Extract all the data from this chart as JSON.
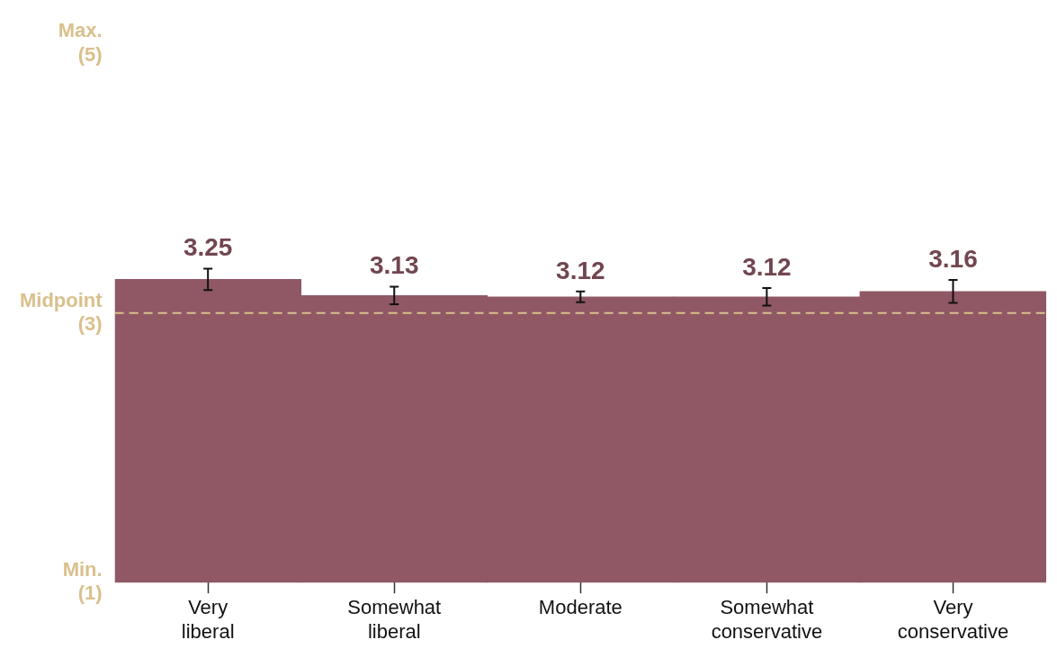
{
  "chart_data": {
    "type": "bar",
    "categories": [
      "Very liberal",
      "Somewhat liberal",
      "Moderate",
      "Somewhat conservative",
      "Very conservative"
    ],
    "values": [
      3.25,
      3.13,
      3.12,
      3.12,
      3.16
    ],
    "errors": [
      0.08,
      0.065,
      0.04,
      0.065,
      0.085
    ],
    "color": "#8f5864",
    "data_labels": true,
    "ylim": [
      1,
      5
    ],
    "yticks": [
      {
        "value": 1,
        "label": "Min.\n(1)"
      },
      {
        "value": 3,
        "label": "Midpoint\n(3)"
      },
      {
        "value": 5,
        "label": "Max.\n(5)"
      }
    ],
    "ref_lines": [
      {
        "axis": "y",
        "value": 3,
        "color": "#d9c08c",
        "line_style": "dashed"
      }
    ],
    "grid": false,
    "legend": false
  }
}
